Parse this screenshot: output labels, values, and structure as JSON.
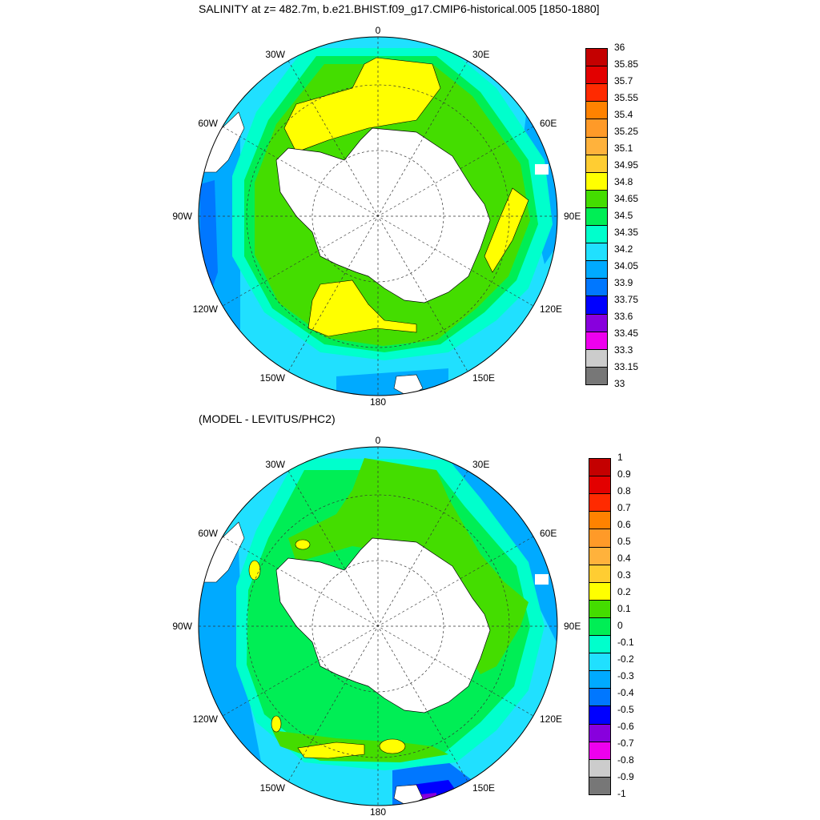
{
  "top_panel": {
    "title": "SALINITY at z= 482.7m, b.e21.BHIST.f09_g17.CMIP6-historical.005 [1850-1880]",
    "lon_labels": {
      "north": "0",
      "ne": "30E",
      "e_upper": "60E",
      "east": "90E",
      "se": "120E",
      "sse": "150E",
      "south": "180",
      "ssw": "150W",
      "sw": "120W",
      "west": "90W",
      "wnw": "60W",
      "nw": "30W"
    },
    "colorbar": {
      "labels": [
        "36",
        "35.85",
        "35.7",
        "35.55",
        "35.4",
        "35.25",
        "35.1",
        "34.95",
        "34.8",
        "34.65",
        "34.5",
        "34.35",
        "34.2",
        "34.05",
        "33.9",
        "33.75",
        "33.6",
        "33.45",
        "33.3",
        "33.15",
        "33"
      ],
      "colors": [
        "#c40000",
        "#e30000",
        "#ff2a00",
        "#ff8200",
        "#ff9a28",
        "#ffb23c",
        "#ffcd32",
        "#ffff00",
        "#44dd00",
        "#00ee55",
        "#00ffcc",
        "#20e0ff",
        "#00aaff",
        "#0077ff",
        "#0000ff",
        "#8800dd",
        "#ee00ee",
        "#cccccc",
        "#777777"
      ]
    }
  },
  "bottom_panel": {
    "title": "(MODEL - LEVITUS/PHC2)",
    "lon_labels": {
      "north": "0",
      "ne": "30E",
      "e_upper": "60E",
      "east": "90E",
      "se": "120E",
      "sse": "150E",
      "south": "180",
      "ssw": "150W",
      "sw": "120W",
      "west": "90W",
      "wnw": "60W",
      "nw": "30W"
    },
    "colorbar": {
      "labels": [
        "1",
        "0.9",
        "0.8",
        "0.7",
        "0.6",
        "0.5",
        "0.4",
        "0.3",
        "0.2",
        "0.1",
        "0",
        "-0.1",
        "-0.2",
        "-0.3",
        "-0.4",
        "-0.5",
        "-0.6",
        "-0.7",
        "-0.8",
        "-0.9",
        "-1"
      ],
      "colors": [
        "#c40000",
        "#e30000",
        "#ff2a00",
        "#ff8200",
        "#ff9a28",
        "#ffb23c",
        "#ffcd32",
        "#ffff00",
        "#44dd00",
        "#00ee55",
        "#00ffcc",
        "#20e0ff",
        "#00aaff",
        "#0077ff",
        "#0000ff",
        "#8800dd",
        "#ee00ee",
        "#cccccc",
        "#777777"
      ]
    }
  }
}
